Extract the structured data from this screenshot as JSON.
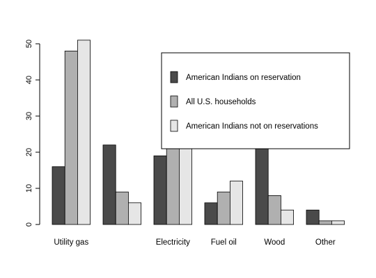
{
  "chart_data": {
    "type": "bar",
    "title": "",
    "xlabel": "",
    "ylabel": "",
    "ylim": [
      0,
      50
    ],
    "yticks": [
      0,
      10,
      20,
      30,
      40,
      50
    ],
    "categories": [
      "Utility gas",
      "",
      "Electricity",
      "Fuel oil",
      "Wood",
      "Other"
    ],
    "series": [
      {
        "name": "American Indians on reservation",
        "color": "#4a4a4a",
        "values": [
          16,
          22,
          19,
          6,
          21,
          4
        ]
      },
      {
        "name": "All U.S. households",
        "color": "#b0b0b0",
        "values": [
          48,
          9,
          21,
          9,
          8,
          1
        ]
      },
      {
        "name": "American Indians not on reservations",
        "color": "#e6e6e6",
        "values": [
          51,
          6,
          21,
          12,
          4,
          1
        ]
      }
    ],
    "grid": false,
    "legend_position": "top-right"
  }
}
